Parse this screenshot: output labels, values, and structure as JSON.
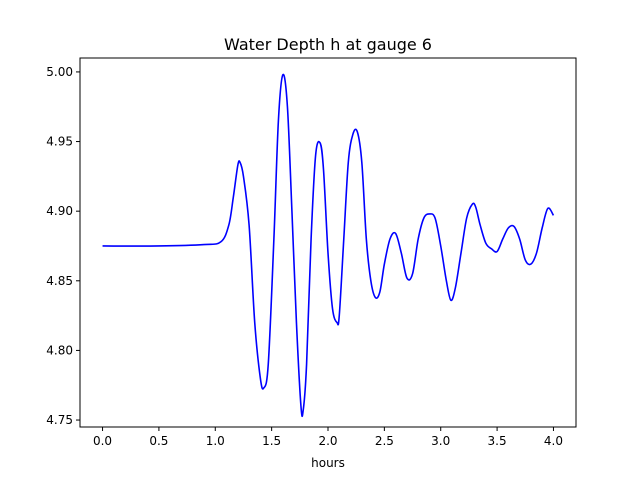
{
  "chart_data": {
    "type": "line",
    "title": "Water Depth h at gauge 6",
    "xlabel": "hours",
    "ylabel": "",
    "xlim": [
      -0.2,
      4.2
    ],
    "ylim": [
      4.745,
      5.01
    ],
    "xticks": [
      0.0,
      0.5,
      1.0,
      1.5,
      2.0,
      2.5,
      3.0,
      3.5,
      4.0
    ],
    "xtick_labels": [
      "0.0",
      "0.5",
      "1.0",
      "1.5",
      "2.0",
      "2.5",
      "3.0",
      "3.5",
      "4.0"
    ],
    "yticks": [
      4.75,
      4.8,
      4.85,
      4.9,
      4.95,
      5.0
    ],
    "ytick_labels": [
      "4.75",
      "4.80",
      "4.85",
      "4.90",
      "4.95",
      "5.00"
    ],
    "grid": false,
    "series": [
      {
        "color": "#0000ff",
        "x": [
          0.0,
          0.5,
          0.9,
          1.05,
          1.12,
          1.16,
          1.2,
          1.22,
          1.25,
          1.3,
          1.35,
          1.4,
          1.43,
          1.47,
          1.52,
          1.56,
          1.6,
          1.64,
          1.68,
          1.72,
          1.76,
          1.78,
          1.81,
          1.85,
          1.89,
          1.93,
          1.96,
          2.0,
          2.04,
          2.08,
          2.1,
          2.14,
          2.18,
          2.22,
          2.26,
          2.3,
          2.34,
          2.38,
          2.42,
          2.46,
          2.5,
          2.55,
          2.6,
          2.65,
          2.7,
          2.75,
          2.8,
          2.85,
          2.9,
          2.95,
          3.0,
          3.05,
          3.09,
          3.13,
          3.18,
          3.23,
          3.28,
          3.31,
          3.35,
          3.4,
          3.45,
          3.5,
          3.55,
          3.6,
          3.65,
          3.7,
          3.75,
          3.8,
          3.85,
          3.9,
          3.95,
          4.0
        ],
        "y": [
          4.875,
          4.875,
          4.876,
          4.878,
          4.89,
          4.91,
          4.933,
          4.935,
          4.925,
          4.89,
          4.82,
          4.78,
          4.773,
          4.79,
          4.88,
          4.965,
          4.998,
          4.975,
          4.9,
          4.82,
          4.76,
          4.757,
          4.79,
          4.88,
          4.94,
          4.949,
          4.93,
          4.87,
          4.83,
          4.82,
          4.825,
          4.88,
          4.935,
          4.955,
          4.957,
          4.935,
          4.88,
          4.85,
          4.838,
          4.842,
          4.862,
          4.88,
          4.884,
          4.87,
          4.852,
          4.855,
          4.88,
          4.895,
          4.898,
          4.895,
          4.875,
          4.85,
          4.836,
          4.845,
          4.87,
          4.895,
          4.905,
          4.903,
          4.89,
          4.877,
          4.873,
          4.871,
          4.88,
          4.888,
          4.889,
          4.88,
          4.865,
          4.862,
          4.87,
          4.888,
          4.902,
          4.897
        ]
      }
    ]
  }
}
